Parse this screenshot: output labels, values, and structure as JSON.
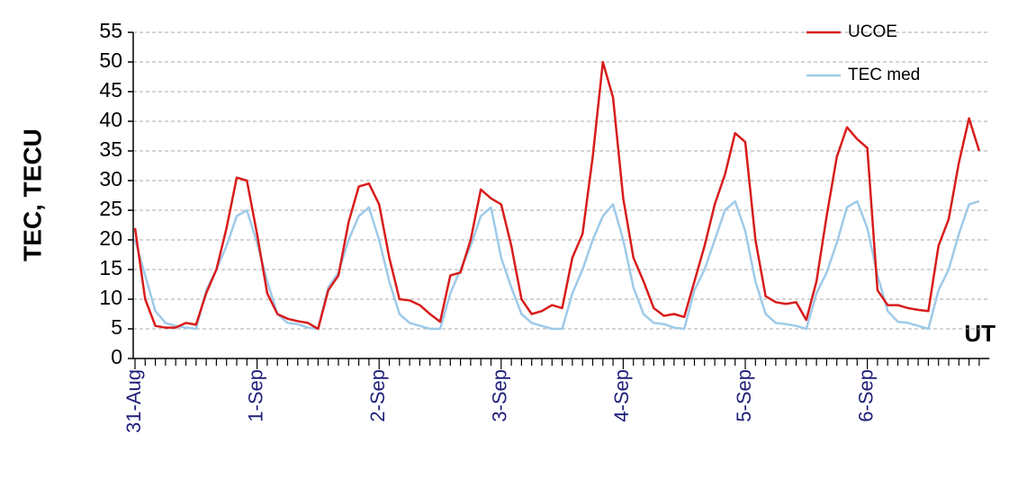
{
  "chart_data": {
    "type": "line",
    "y_label": "TEC, TECU",
    "x_label": "UT",
    "categories": [
      "31-Aug",
      null,
      null,
      null,
      null,
      null,
      null,
      null,
      null,
      null,
      null,
      null,
      "1-Sep",
      null,
      null,
      null,
      null,
      null,
      null,
      null,
      null,
      null,
      null,
      null,
      "2-Sep",
      null,
      null,
      null,
      null,
      null,
      null,
      null,
      null,
      null,
      null,
      null,
      "3-Sep",
      null,
      null,
      null,
      null,
      null,
      null,
      null,
      null,
      null,
      null,
      null,
      "4-Sep",
      null,
      null,
      null,
      null,
      null,
      null,
      null,
      null,
      null,
      null,
      null,
      "5-Sep",
      null,
      null,
      null,
      null,
      null,
      null,
      null,
      null,
      null,
      null,
      null,
      "6-Sep",
      null,
      null,
      null,
      null,
      null,
      null,
      null,
      null,
      null,
      null,
      null
    ],
    "series": [
      {
        "name": "UCOE",
        "color": "#d81c1c",
        "values": [
          22,
          10,
          5.5,
          5.2,
          5.2,
          6,
          5.7,
          11,
          15,
          22,
          30.5,
          30,
          21,
          11,
          7.5,
          6.7,
          6.3,
          6,
          5,
          11.5,
          14,
          23,
          29,
          29.5,
          26,
          17,
          10,
          9.8,
          9,
          7.5,
          6.2,
          14,
          14.5,
          20,
          28.5,
          27,
          26,
          19,
          10,
          7.5,
          8,
          9,
          8.5,
          17,
          21,
          34,
          50,
          44,
          27,
          17,
          13,
          8.5,
          7.2,
          7.5,
          7,
          13,
          19,
          26,
          31,
          38,
          36.5,
          20,
          10.5,
          9.5,
          9.2,
          9.5,
          6.5,
          13,
          24,
          34,
          39,
          37,
          35.5,
          11.5,
          9,
          9,
          8.5,
          8.2,
          8,
          19,
          23.5,
          33,
          40.5,
          35
        ]
      },
      {
        "name": "TEC med",
        "color": "#9ecae9",
        "values": [
          20,
          14,
          8,
          6,
          5.5,
          5.2,
          5,
          11.5,
          15,
          19,
          24,
          25,
          19.5,
          13,
          7.5,
          6,
          5.8,
          5.2,
          5,
          12,
          14.5,
          20,
          24,
          25.5,
          20,
          13,
          7.5,
          6,
          5.5,
          5,
          5,
          11,
          15,
          19,
          24,
          25.5,
          17,
          12,
          7.5,
          6,
          5.5,
          5,
          5,
          11,
          15,
          20,
          24,
          26,
          20,
          12,
          7.5,
          6,
          5.8,
          5.2,
          5,
          11.5,
          15,
          20,
          25,
          26.5,
          21.5,
          13,
          7.5,
          6,
          5.8,
          5.5,
          5,
          11,
          14.5,
          19.5,
          25.5,
          26.5,
          22,
          14,
          8,
          6.2,
          6,
          5.5,
          5,
          11.5,
          15,
          21,
          26,
          26.5
        ]
      }
    ],
    "ylim": [
      0,
      55
    ],
    "yticks": [
      0,
      5,
      10,
      15,
      20,
      25,
      30,
      35,
      40,
      45,
      50,
      55
    ],
    "grid": true,
    "legend": "top-right"
  }
}
